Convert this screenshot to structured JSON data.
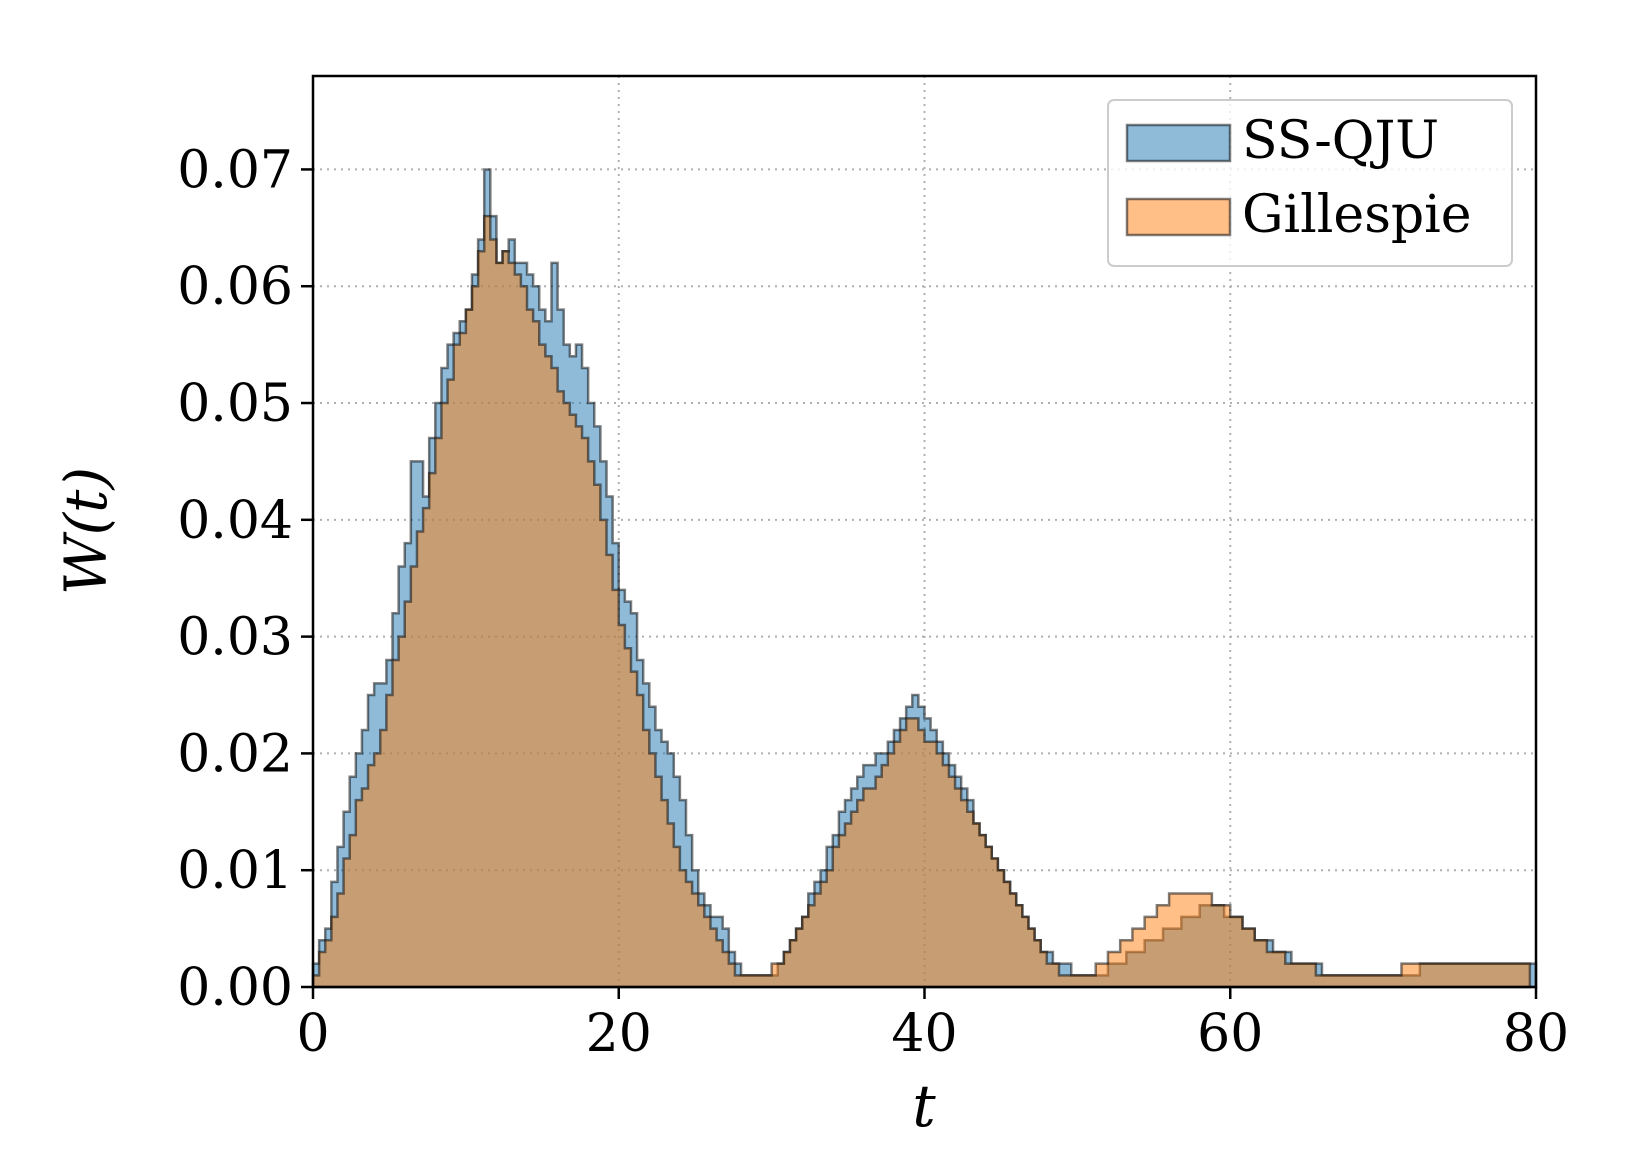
{
  "chart_data": {
    "type": "histogram",
    "xlabel": "t",
    "ylabel": "W(t)",
    "xlim": [
      0,
      80
    ],
    "ylim": [
      0,
      0.078
    ],
    "xticks": [
      "0",
      "20",
      "40",
      "60",
      "80"
    ],
    "yticks": [
      "0.00",
      "0.01",
      "0.02",
      "0.03",
      "0.04",
      "0.05",
      "0.06",
      "0.07"
    ],
    "grid": true,
    "legend_position": "top-right",
    "bin_width": 0.4,
    "series": [
      {
        "name": "SS-QJU",
        "color": "#1f77b4",
        "values": [
          0.002,
          0.004,
          0.005,
          0.009,
          0.012,
          0.015,
          0.018,
          0.02,
          0.022,
          0.025,
          0.026,
          0.026,
          0.028,
          0.032,
          0.036,
          0.038,
          0.045,
          0.045,
          0.042,
          0.047,
          0.05,
          0.053,
          0.055,
          0.056,
          0.057,
          0.058,
          0.061,
          0.064,
          0.07,
          0.066,
          0.062,
          0.063,
          0.064,
          0.062,
          0.062,
          0.061,
          0.06,
          0.058,
          0.057,
          0.062,
          0.058,
          0.055,
          0.054,
          0.055,
          0.053,
          0.05,
          0.048,
          0.045,
          0.042,
          0.038,
          0.034,
          0.033,
          0.032,
          0.028,
          0.026,
          0.024,
          0.022,
          0.021,
          0.02,
          0.018,
          0.016,
          0.013,
          0.01,
          0.008,
          0.007,
          0.006,
          0.006,
          0.005,
          0.003,
          0.002,
          0.001,
          0.001,
          0.001,
          0.001,
          0.001,
          0.001,
          0.002,
          0.003,
          0.004,
          0.005,
          0.006,
          0.008,
          0.009,
          0.01,
          0.012,
          0.013,
          0.015,
          0.016,
          0.017,
          0.018,
          0.019,
          0.019,
          0.02,
          0.02,
          0.021,
          0.022,
          0.023,
          0.024,
          0.025,
          0.024,
          0.023,
          0.022,
          0.021,
          0.02,
          0.019,
          0.018,
          0.017,
          0.016,
          0.014,
          0.013,
          0.012,
          0.011,
          0.01,
          0.009,
          0.008,
          0.007,
          0.006,
          0.005,
          0.004,
          0.003,
          0.003,
          0.002,
          0.002,
          0.002,
          0.001,
          0.001,
          0.001,
          0.001,
          0.001,
          0.001,
          0.002,
          0.002,
          0.002,
          0.003,
          0.003,
          0.003,
          0.004,
          0.004,
          0.004,
          0.005,
          0.005,
          0.005,
          0.006,
          0.006,
          0.006,
          0.007,
          0.007,
          0.007,
          0.007,
          0.006,
          0.006,
          0.006,
          0.005,
          0.005,
          0.004,
          0.004,
          0.004,
          0.003,
          0.003,
          0.003,
          0.002,
          0.002,
          0.002,
          0.002,
          0.002,
          0.001,
          0.001,
          0.001,
          0.001,
          0.001,
          0.001,
          0.001,
          0.001,
          0.001,
          0.001,
          0.001,
          0.001,
          0.001,
          0.001,
          0.001,
          0.001,
          0.002,
          0.002,
          0.002,
          0.002,
          0.002,
          0.002,
          0.002,
          0.002,
          0.002,
          0.002,
          0.002,
          0.002,
          0.002,
          0.002,
          0.002,
          0.002,
          0.002,
          0.002,
          0.002
        ]
      },
      {
        "name": "Gillespie",
        "color": "#ff7f0e",
        "values": [
          0.001,
          0.003,
          0.004,
          0.006,
          0.008,
          0.011,
          0.013,
          0.016,
          0.017,
          0.019,
          0.02,
          0.022,
          0.025,
          0.028,
          0.03,
          0.033,
          0.036,
          0.039,
          0.041,
          0.044,
          0.047,
          0.05,
          0.052,
          0.055,
          0.056,
          0.058,
          0.06,
          0.063,
          0.066,
          0.064,
          0.062,
          0.063,
          0.062,
          0.061,
          0.06,
          0.058,
          0.057,
          0.055,
          0.054,
          0.053,
          0.051,
          0.05,
          0.049,
          0.048,
          0.047,
          0.045,
          0.043,
          0.04,
          0.037,
          0.034,
          0.031,
          0.029,
          0.027,
          0.025,
          0.022,
          0.02,
          0.018,
          0.016,
          0.014,
          0.012,
          0.01,
          0.009,
          0.008,
          0.007,
          0.006,
          0.005,
          0.004,
          0.003,
          0.002,
          0.001,
          0.001,
          0.001,
          0.001,
          0.001,
          0.001,
          0.002,
          0.002,
          0.003,
          0.004,
          0.005,
          0.006,
          0.007,
          0.008,
          0.009,
          0.01,
          0.012,
          0.013,
          0.014,
          0.015,
          0.016,
          0.017,
          0.017,
          0.018,
          0.019,
          0.02,
          0.021,
          0.022,
          0.023,
          0.023,
          0.022,
          0.021,
          0.021,
          0.02,
          0.019,
          0.018,
          0.017,
          0.016,
          0.015,
          0.014,
          0.013,
          0.012,
          0.011,
          0.01,
          0.009,
          0.008,
          0.007,
          0.006,
          0.005,
          0.004,
          0.003,
          0.002,
          0.002,
          0.001,
          0.001,
          0.001,
          0.001,
          0.001,
          0.001,
          0.002,
          0.002,
          0.003,
          0.003,
          0.004,
          0.004,
          0.005,
          0.005,
          0.006,
          0.006,
          0.007,
          0.007,
          0.008,
          0.008,
          0.008,
          0.008,
          0.008,
          0.008,
          0.008,
          0.007,
          0.007,
          0.007,
          0.006,
          0.006,
          0.005,
          0.005,
          0.004,
          0.004,
          0.003,
          0.003,
          0.003,
          0.002,
          0.002,
          0.002,
          0.002,
          0.002,
          0.001,
          0.001,
          0.001,
          0.001,
          0.001,
          0.001,
          0.001,
          0.001,
          0.001,
          0.001,
          0.001,
          0.001,
          0.001,
          0.001,
          0.002,
          0.002,
          0.002,
          0.002,
          0.002,
          0.002,
          0.002,
          0.002,
          0.002,
          0.002,
          0.002,
          0.002,
          0.002,
          0.002,
          0.002,
          0.002,
          0.002,
          0.002,
          0.002,
          0.002,
          0.002
        ]
      }
    ]
  }
}
